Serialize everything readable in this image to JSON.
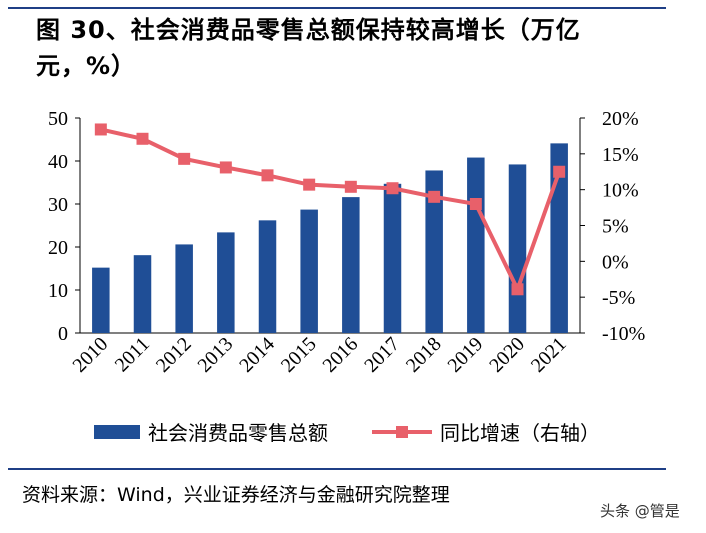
{
  "title": {
    "line1": "图 30、社会消费品零售总额保持较高增长（万亿",
    "line2": "元，%）"
  },
  "chart_data": {
    "type": "bar",
    "categories": [
      "2010",
      "2011",
      "2012",
      "2013",
      "2014",
      "2015",
      "2016",
      "2017",
      "2018",
      "2019",
      "2020",
      "2021"
    ],
    "series": [
      {
        "name": "社会消费品零售总额",
        "type": "bar",
        "axis": "left",
        "color": "#1f4e96",
        "values": [
          15.2,
          18.1,
          20.6,
          23.4,
          26.2,
          28.7,
          31.6,
          34.7,
          37.8,
          40.8,
          39.2,
          44.1
        ]
      },
      {
        "name": "同比增速（右轴）",
        "type": "line",
        "axis": "right",
        "color": "#e8606a",
        "values": [
          18.4,
          17.1,
          14.3,
          13.1,
          12.0,
          10.7,
          10.4,
          10.2,
          9.0,
          8.0,
          -3.9,
          12.5
        ]
      }
    ],
    "left_axis": {
      "ylim": [
        0,
        50
      ],
      "ticks": [
        "0",
        "10",
        "20",
        "30",
        "40",
        "50"
      ]
    },
    "right_axis": {
      "ylim": [
        -10,
        20
      ],
      "ticks": [
        "-10%",
        "-5%",
        "0%",
        "5%",
        "10%",
        "15%",
        "20%"
      ]
    },
    "legend": [
      "社会消费品零售总额",
      "同比增速（右轴）"
    ],
    "legend_position": "bottom"
  },
  "source": "资料来源：Wind，兴业证券经济与金融研究院整理",
  "watermark": "头条 @管是"
}
